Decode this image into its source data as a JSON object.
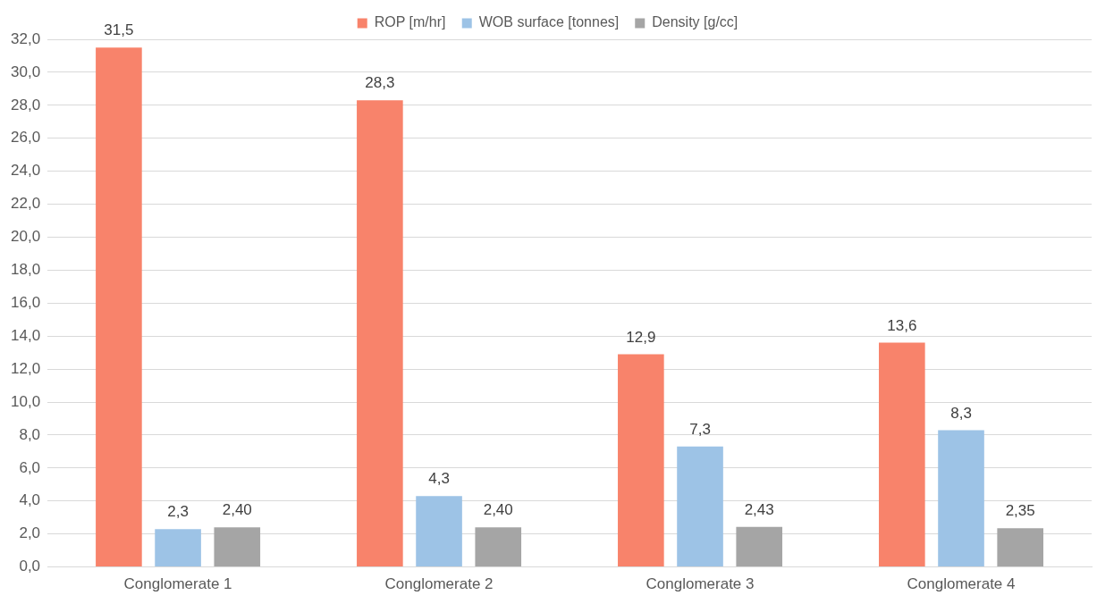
{
  "chart_data": {
    "type": "bar",
    "categories": [
      "Conglomerate 1",
      "Conglomerate 2",
      "Conglomerate 3",
      "Conglomerate 4"
    ],
    "series": [
      {
        "name": "ROP [m/hr]",
        "color": "#f8836b",
        "values": [
          31.5,
          28.3,
          12.9,
          13.6
        ],
        "value_labels": [
          "31,5",
          "28,3",
          "12,9",
          "13,6"
        ]
      },
      {
        "name": "WOB surface [tonnes]",
        "color": "#9dc3e6",
        "values": [
          2.3,
          4.3,
          7.3,
          8.3
        ],
        "value_labels": [
          "2,3",
          "4,3",
          "7,3",
          "8,3"
        ]
      },
      {
        "name": "Density [g/cc]",
        "color": "#a5a5a5",
        "values": [
          2.4,
          2.4,
          2.43,
          2.35
        ],
        "value_labels": [
          "2,40",
          "2,40",
          "2,43",
          "2,35"
        ]
      }
    ],
    "ylim": [
      0,
      32
    ],
    "yticks": [
      {
        "value": 0,
        "label": "0,0"
      },
      {
        "value": 2,
        "label": "2,0"
      },
      {
        "value": 4,
        "label": "4,0"
      },
      {
        "value": 6,
        "label": "6,0"
      },
      {
        "value": 8,
        "label": "8,0"
      },
      {
        "value": 10,
        "label": "10,0"
      },
      {
        "value": 12,
        "label": "12,0"
      },
      {
        "value": 14,
        "label": "14,0"
      },
      {
        "value": 16,
        "label": "16,0"
      },
      {
        "value": 18,
        "label": "18,0"
      },
      {
        "value": 20,
        "label": "20,0"
      },
      {
        "value": 22,
        "label": "22,0"
      },
      {
        "value": 24,
        "label": "24,0"
      },
      {
        "value": 26,
        "label": "26,0"
      },
      {
        "value": 28,
        "label": "28,0"
      },
      {
        "value": 30,
        "label": "30,0"
      },
      {
        "value": 32,
        "label": "32,0"
      }
    ],
    "grid": "y",
    "legend": "top"
  }
}
